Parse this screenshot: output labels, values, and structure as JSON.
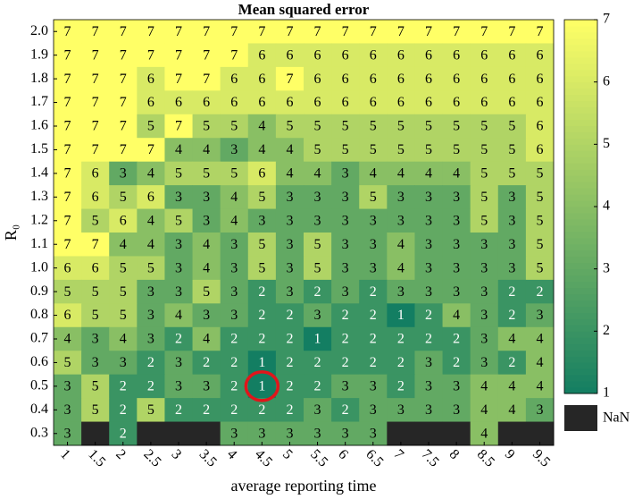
{
  "chart_data": {
    "type": "heatmap",
    "title": "Mean squared error",
    "xlabel": "average reporting time",
    "ylabel": "R₀",
    "x": [
      1,
      1.5,
      2,
      2.5,
      3,
      3.5,
      4,
      4.5,
      5,
      5.5,
      6,
      6.5,
      7,
      7.5,
      8,
      8.5,
      9,
      9.5
    ],
    "y": [
      "2.0",
      "1.9",
      "1.8",
      "1.7",
      "1.6",
      "1.5",
      "1.4",
      "1.3",
      "1.2",
      "1.1",
      "1.0",
      "0.9",
      "0.8",
      "0.7",
      "0.6",
      "0.5",
      "0.4",
      "0.3"
    ],
    "values": [
      [
        7,
        7,
        7,
        7,
        7,
        7,
        7,
        7,
        7,
        7,
        7,
        7,
        7,
        7,
        7,
        7,
        7,
        7
      ],
      [
        7,
        7,
        7,
        7,
        7,
        7,
        7,
        6,
        6,
        6,
        6,
        6,
        6,
        6,
        6,
        6,
        6,
        6
      ],
      [
        7,
        7,
        7,
        6,
        7,
        7,
        6,
        6,
        7,
        6,
        6,
        6,
        6,
        6,
        6,
        6,
        6,
        6
      ],
      [
        7,
        7,
        7,
        6,
        6,
        6,
        6,
        6,
        6,
        6,
        6,
        6,
        6,
        6,
        6,
        6,
        6,
        6
      ],
      [
        7,
        7,
        7,
        5,
        7,
        5,
        5,
        4,
        5,
        5,
        5,
        5,
        5,
        5,
        5,
        5,
        5,
        6
      ],
      [
        7,
        7,
        7,
        7,
        4,
        4,
        3,
        4,
        4,
        5,
        5,
        5,
        5,
        5,
        5,
        5,
        5,
        6
      ],
      [
        7,
        6,
        3,
        4,
        5,
        5,
        5,
        6,
        4,
        4,
        3,
        4,
        4,
        4,
        4,
        5,
        5,
        5
      ],
      [
        7,
        6,
        5,
        6,
        3,
        3,
        4,
        5,
        3,
        3,
        3,
        5,
        3,
        3,
        3,
        5,
        3,
        5
      ],
      [
        7,
        5,
        6,
        4,
        5,
        3,
        4,
        3,
        3,
        3,
        3,
        3,
        3,
        3,
        3,
        5,
        3,
        5
      ],
      [
        7,
        7,
        4,
        4,
        3,
        4,
        3,
        5,
        3,
        5,
        3,
        3,
        4,
        3,
        3,
        3,
        3,
        5
      ],
      [
        6,
        6,
        5,
        5,
        3,
        4,
        3,
        5,
        3,
        5,
        3,
        3,
        4,
        3,
        3,
        3,
        3,
        5
      ],
      [
        5,
        5,
        5,
        3,
        3,
        5,
        3,
        2,
        3,
        2,
        3,
        2,
        3,
        3,
        3,
        3,
        2,
        2
      ],
      [
        6,
        5,
        5,
        3,
        4,
        3,
        3,
        2,
        2,
        3,
        2,
        2,
        1,
        2,
        4,
        3,
        2,
        3
      ],
      [
        4,
        3,
        4,
        3,
        2,
        4,
        2,
        2,
        2,
        1,
        2,
        2,
        2,
        2,
        2,
        3,
        4,
        4
      ],
      [
        5,
        3,
        3,
        2,
        3,
        2,
        2,
        1,
        2,
        2,
        2,
        2,
        2,
        3,
        2,
        3,
        2,
        4
      ],
      [
        3,
        5,
        2,
        2,
        3,
        3,
        2,
        1,
        2,
        2,
        3,
        3,
        2,
        3,
        3,
        4,
        4,
        4
      ],
      [
        3,
        5,
        2,
        5,
        2,
        2,
        2,
        2,
        2,
        3,
        2,
        3,
        3,
        3,
        3,
        4,
        4,
        3
      ],
      [
        3,
        null,
        2,
        null,
        null,
        null,
        3,
        3,
        3,
        3,
        3,
        3,
        null,
        null,
        null,
        4,
        null,
        null
      ]
    ],
    "zlim": [
      1,
      7
    ],
    "zticks": [
      1,
      2,
      3,
      4,
      5,
      6,
      7
    ],
    "colormap": [
      "#137e62",
      "#ffff66"
    ],
    "nan_color": "#262626",
    "nan_label": "NaN"
  }
}
